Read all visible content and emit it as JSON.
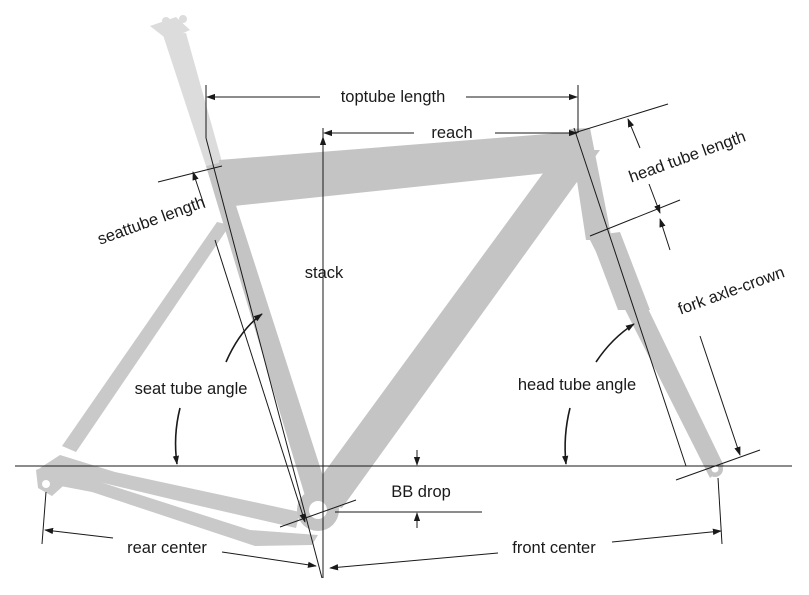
{
  "colors": {
    "frame": "#c4c4c4",
    "seatpost": "#dcdcdc",
    "rear": "#c9c9c9",
    "line": "#1a1a1a",
    "background": "#ffffff"
  },
  "labels": {
    "toptube_length": "toptube length",
    "reach": "reach",
    "head_tube_length": "head tube length",
    "seattube_length": "seattube length",
    "stack": "stack",
    "fork_axle_crown": "fork axle-crown",
    "seat_tube_angle": "seat tube angle",
    "head_tube_angle": "head tube angle",
    "bb_drop": "BB drop",
    "rear_center": "rear center",
    "front_center": "front center"
  }
}
